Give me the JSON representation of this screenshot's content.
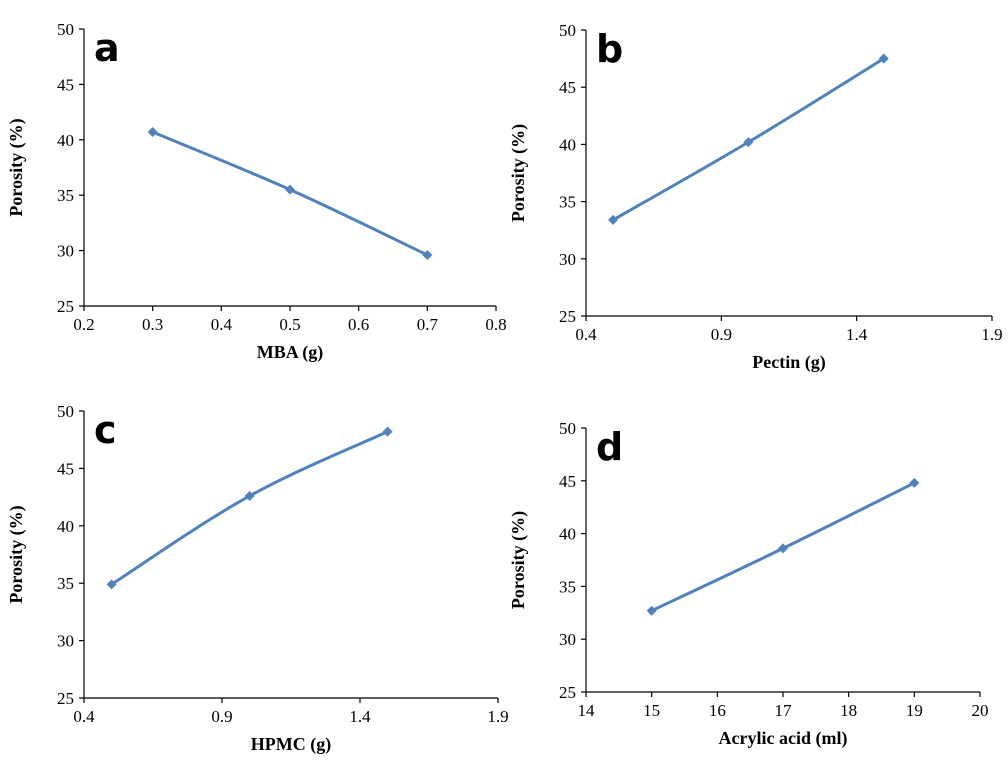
{
  "series_color": "#4f81bd",
  "chart_data": [
    {
      "type": "line",
      "panel_label": "a",
      "xlabel": "MBA (g)",
      "ylabel": "Porosity (%)",
      "xlim": [
        0.2,
        0.8
      ],
      "ylim": [
        25,
        50
      ],
      "xticks": [
        0.2,
        0.3,
        0.4,
        0.5,
        0.6,
        0.7,
        0.8
      ],
      "xtick_labels": [
        "0.2",
        "0.3",
        "0.4",
        "0.5",
        "0.6",
        "0.7",
        "0.8"
      ],
      "yticks": [
        25,
        30,
        35,
        40,
        45,
        50
      ],
      "ytick_labels": [
        "25",
        "30",
        "35",
        "40",
        "45",
        "50"
      ],
      "smooth": true,
      "series": [
        {
          "x": [
            0.3,
            0.5,
            0.7
          ],
          "y": [
            40.7,
            35.5,
            29.6
          ]
        }
      ]
    },
    {
      "type": "line",
      "panel_label": "b",
      "xlabel": "Pectin (g)",
      "ylabel": "Porosity (%)",
      "xlim": [
        0.4,
        1.9
      ],
      "ylim": [
        25,
        50
      ],
      "xticks": [
        0.4,
        0.9,
        1.4,
        1.9
      ],
      "xtick_labels": [
        "0.4",
        "0.9",
        "1.4",
        "1.9"
      ],
      "yticks": [
        25,
        30,
        35,
        40,
        45,
        50
      ],
      "ytick_labels": [
        "25",
        "30",
        "35",
        "40",
        "45",
        "50"
      ],
      "smooth": true,
      "series": [
        {
          "x": [
            0.5,
            1.0,
            1.5
          ],
          "y": [
            33.4,
            40.2,
            47.5
          ]
        }
      ]
    },
    {
      "type": "line",
      "panel_label": "c",
      "xlabel": "HPMC (g)",
      "ylabel": "Porosity (%)",
      "xlim": [
        0.4,
        1.9
      ],
      "ylim": [
        25,
        50
      ],
      "xticks": [
        0.4,
        0.9,
        1.4,
        1.9
      ],
      "xtick_labels": [
        "0.4",
        "0.9",
        "1.4",
        "1.9"
      ],
      "yticks": [
        25,
        30,
        35,
        40,
        45,
        50
      ],
      "ytick_labels": [
        "25",
        "30",
        "35",
        "40",
        "45",
        "50"
      ],
      "smooth": true,
      "series": [
        {
          "x": [
            0.5,
            1.0,
            1.5
          ],
          "y": [
            34.9,
            42.6,
            48.2
          ]
        }
      ]
    },
    {
      "type": "line",
      "panel_label": "d",
      "xlabel": "Acrylic acid (ml)",
      "ylabel": "Porosity (%)",
      "xlim": [
        14,
        20
      ],
      "ylim": [
        25,
        50
      ],
      "xticks": [
        14,
        15,
        16,
        17,
        18,
        19,
        20
      ],
      "xtick_labels": [
        "14",
        "15",
        "16",
        "17",
        "18",
        "19",
        "20"
      ],
      "yticks": [
        25,
        30,
        35,
        40,
        45,
        50
      ],
      "ytick_labels": [
        "25",
        "30",
        "35",
        "40",
        "45",
        "50"
      ],
      "smooth": true,
      "series": [
        {
          "x": [
            15,
            17,
            19
          ],
          "y": [
            32.7,
            38.6,
            44.8
          ]
        }
      ]
    }
  ]
}
